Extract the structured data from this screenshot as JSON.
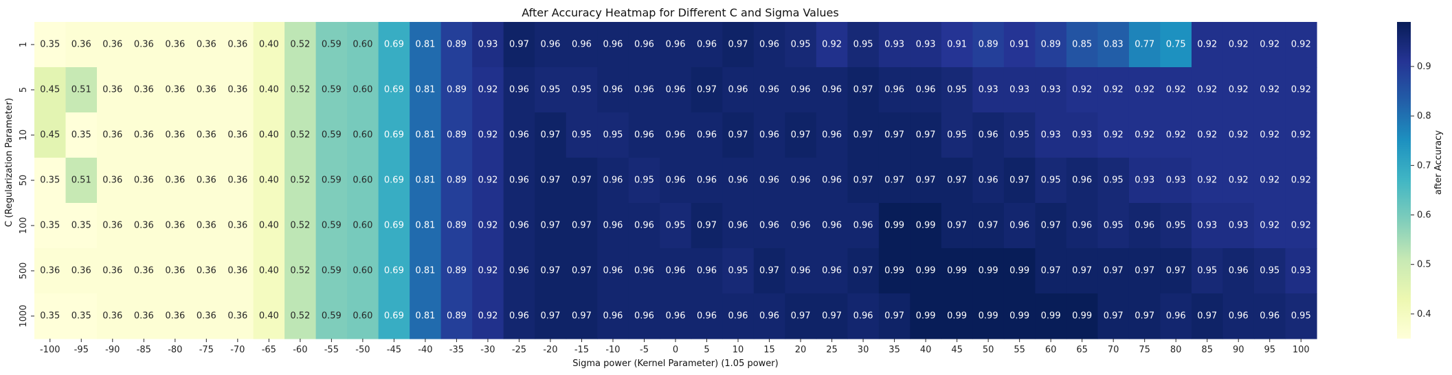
{
  "chart_data": {
    "type": "heatmap",
    "title": "After Accuracy Heatmap for Different C and Sigma Values",
    "xlabel": "Sigma power (Kernel Parameter) (1.05 power)",
    "ylabel": "C (Regularization Parameter)",
    "colorbar_label": "after Accuracy",
    "colormap": "YlGnBu",
    "color_range": [
      0.35,
      0.99
    ],
    "colorbar_ticks": [
      "0.4",
      "0.5",
      "0.6",
      "0.7",
      "0.8",
      "0.9"
    ],
    "x": [
      "-100",
      "-95",
      "-90",
      "-85",
      "-80",
      "-75",
      "-70",
      "-65",
      "-60",
      "-55",
      "-50",
      "-45",
      "-40",
      "-35",
      "-30",
      "-25",
      "-20",
      "-15",
      "-10",
      "-5",
      "0",
      "5",
      "10",
      "15",
      "20",
      "25",
      "30",
      "35",
      "40",
      "45",
      "50",
      "55",
      "60",
      "65",
      "70",
      "75",
      "80",
      "85",
      "90",
      "95",
      "100"
    ],
    "y": [
      "1",
      "5",
      "10",
      "50",
      "100",
      "500",
      "1000"
    ],
    "values": [
      [
        0.35,
        0.36,
        0.36,
        0.36,
        0.36,
        0.36,
        0.36,
        0.4,
        0.52,
        0.59,
        0.6,
        0.69,
        0.81,
        0.89,
        0.93,
        0.97,
        0.96,
        0.96,
        0.96,
        0.96,
        0.96,
        0.96,
        0.97,
        0.96,
        0.95,
        0.92,
        0.95,
        0.93,
        0.93,
        0.91,
        0.89,
        0.91,
        0.89,
        0.85,
        0.83,
        0.77,
        0.75,
        0.92,
        0.92,
        0.92,
        0.92
      ],
      [
        0.45,
        0.51,
        0.36,
        0.36,
        0.36,
        0.36,
        0.36,
        0.4,
        0.52,
        0.59,
        0.6,
        0.69,
        0.81,
        0.89,
        0.92,
        0.96,
        0.95,
        0.95,
        0.96,
        0.96,
        0.96,
        0.97,
        0.96,
        0.96,
        0.96,
        0.96,
        0.97,
        0.96,
        0.96,
        0.95,
        0.93,
        0.93,
        0.93,
        0.92,
        0.92,
        0.92,
        0.92,
        0.92,
        0.92,
        0.92,
        0.92
      ],
      [
        0.45,
        0.35,
        0.36,
        0.36,
        0.36,
        0.36,
        0.36,
        0.4,
        0.52,
        0.59,
        0.6,
        0.69,
        0.81,
        0.89,
        0.92,
        0.96,
        0.97,
        0.95,
        0.95,
        0.96,
        0.96,
        0.96,
        0.97,
        0.96,
        0.97,
        0.96,
        0.97,
        0.97,
        0.97,
        0.95,
        0.96,
        0.95,
        0.93,
        0.93,
        0.92,
        0.92,
        0.92,
        0.92,
        0.92,
        0.92,
        0.92
      ],
      [
        0.35,
        0.51,
        0.36,
        0.36,
        0.36,
        0.36,
        0.36,
        0.4,
        0.52,
        0.59,
        0.6,
        0.69,
        0.81,
        0.89,
        0.92,
        0.96,
        0.97,
        0.97,
        0.96,
        0.95,
        0.96,
        0.96,
        0.96,
        0.96,
        0.96,
        0.96,
        0.97,
        0.97,
        0.97,
        0.97,
        0.96,
        0.97,
        0.95,
        0.96,
        0.95,
        0.93,
        0.93,
        0.92,
        0.92,
        0.92,
        0.92
      ],
      [
        0.35,
        0.35,
        0.36,
        0.36,
        0.36,
        0.36,
        0.36,
        0.4,
        0.52,
        0.59,
        0.6,
        0.69,
        0.81,
        0.89,
        0.92,
        0.96,
        0.97,
        0.97,
        0.96,
        0.96,
        0.95,
        0.97,
        0.96,
        0.96,
        0.96,
        0.96,
        0.96,
        0.99,
        0.99,
        0.97,
        0.97,
        0.96,
        0.97,
        0.96,
        0.95,
        0.96,
        0.95,
        0.93,
        0.93,
        0.92,
        0.92
      ],
      [
        0.36,
        0.36,
        0.36,
        0.36,
        0.36,
        0.36,
        0.36,
        0.4,
        0.52,
        0.59,
        0.6,
        0.69,
        0.81,
        0.89,
        0.92,
        0.96,
        0.97,
        0.97,
        0.96,
        0.96,
        0.96,
        0.96,
        0.95,
        0.97,
        0.96,
        0.96,
        0.97,
        0.99,
        0.99,
        0.99,
        0.99,
        0.99,
        0.97,
        0.97,
        0.97,
        0.97,
        0.97,
        0.95,
        0.96,
        0.95,
        0.93
      ],
      [
        0.35,
        0.35,
        0.36,
        0.36,
        0.36,
        0.36,
        0.36,
        0.4,
        0.52,
        0.59,
        0.6,
        0.69,
        0.81,
        0.89,
        0.92,
        0.96,
        0.97,
        0.97,
        0.96,
        0.96,
        0.96,
        0.96,
        0.96,
        0.96,
        0.97,
        0.97,
        0.96,
        0.97,
        0.99,
        0.99,
        0.99,
        0.99,
        0.99,
        0.99,
        0.97,
        0.97,
        0.96,
        0.97,
        0.96,
        0.96,
        0.95
      ]
    ]
  }
}
